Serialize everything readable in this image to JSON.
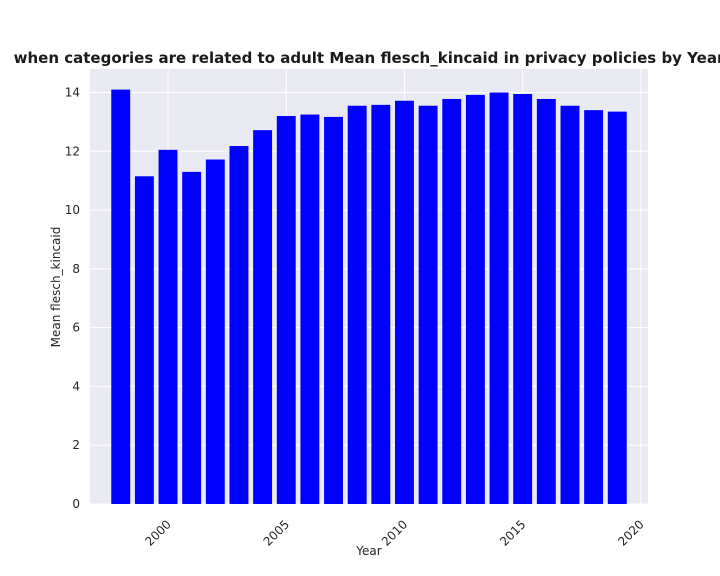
{
  "chart_data": {
    "type": "bar",
    "title": "when categories are related to adult Mean flesch_kincaid in privacy policies by Year",
    "xlabel": "Year",
    "ylabel": "Mean flesch_kincaid",
    "x": [
      1998,
      1999,
      2000,
      2001,
      2002,
      2003,
      2004,
      2005,
      2006,
      2007,
      2008,
      2009,
      2010,
      2011,
      2012,
      2013,
      2014,
      2015,
      2016,
      2017,
      2018,
      2019
    ],
    "values": [
      14.1,
      11.15,
      12.05,
      11.3,
      11.72,
      12.18,
      12.72,
      13.2,
      13.25,
      13.17,
      13.55,
      13.58,
      13.72,
      13.55,
      13.78,
      13.92,
      14.0,
      13.95,
      13.78,
      13.55,
      13.4,
      13.35
    ],
    "xticks": [
      2000,
      2005,
      2010,
      2015,
      2020
    ],
    "yticks": [
      0,
      2,
      4,
      6,
      8,
      10,
      12,
      14
    ],
    "xlim": [
      1996.7,
      2020.3
    ],
    "ylim": [
      0,
      14.8
    ],
    "grid": true,
    "colors": {
      "bar": "#0000ff",
      "plot_background": "#eaeaf2",
      "grid": "#ffffff"
    }
  }
}
